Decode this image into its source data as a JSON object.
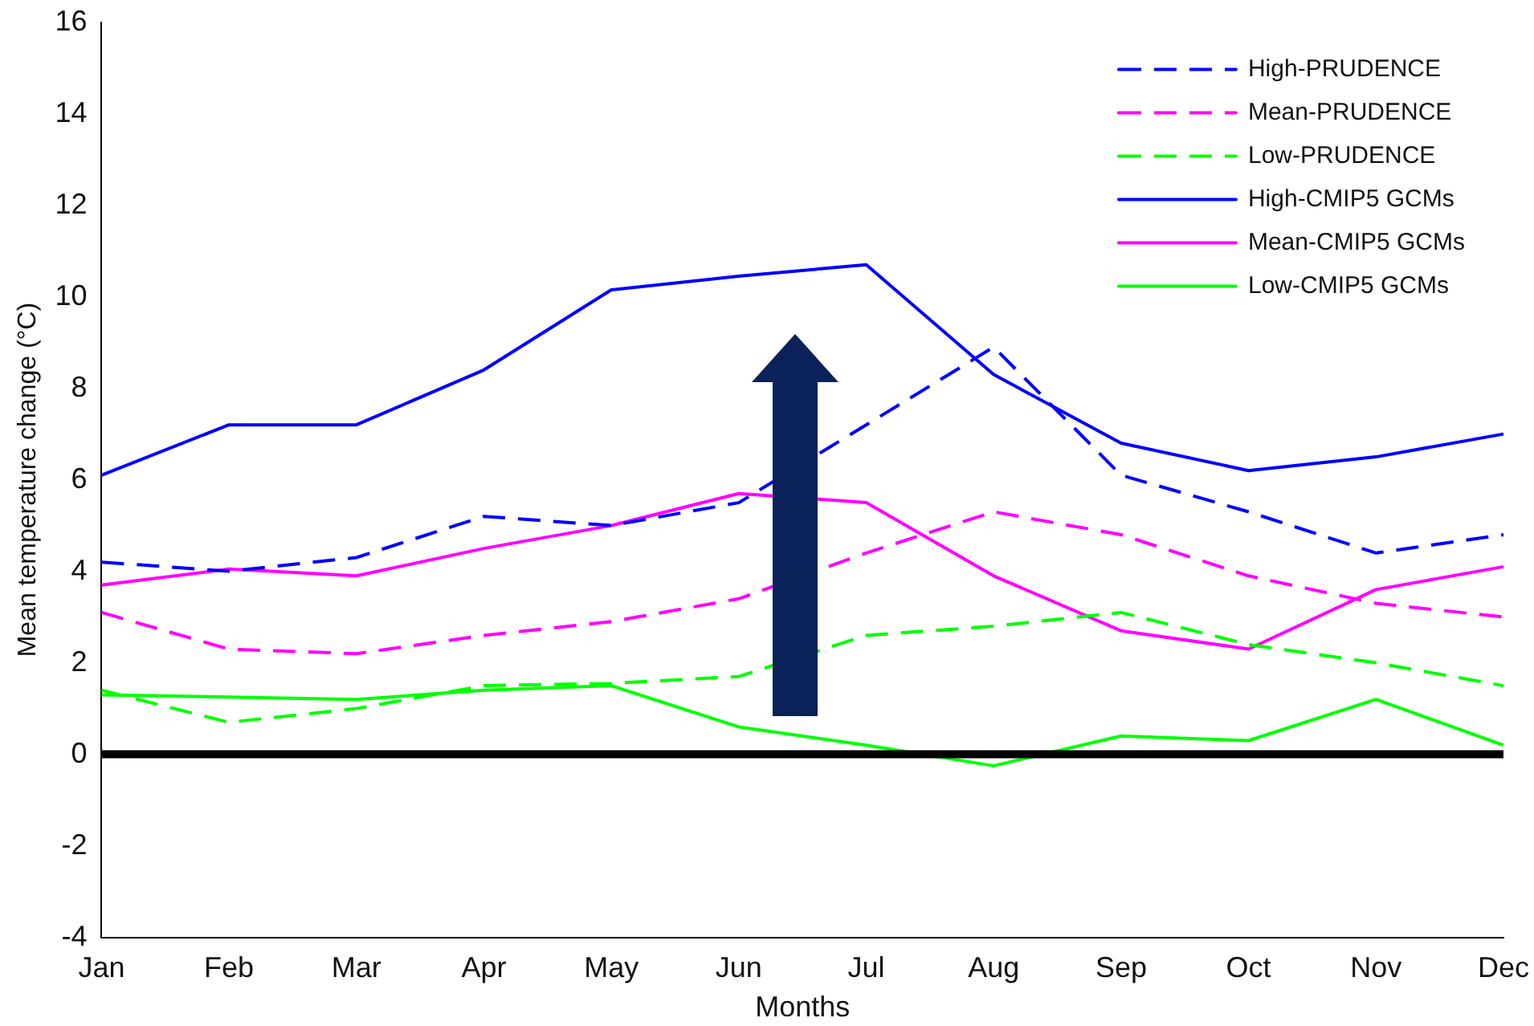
{
  "chart_data": {
    "type": "line",
    "xlabel": "Months",
    "ylabel": "Mean temperature change (°C)",
    "categories": [
      "Jan",
      "Feb",
      "Mar",
      "Apr",
      "May",
      "Jun",
      "Jul",
      "Aug",
      "Sep",
      "Oct",
      "Nov",
      "Dec"
    ],
    "series": [
      {
        "name": "High-PRUDENCE",
        "color": "#0000ff",
        "line_style": "dashed",
        "values": [
          4.2,
          4.0,
          4.3,
          5.2,
          5.0,
          5.5,
          7.2,
          8.9,
          6.1,
          5.3,
          4.4,
          4.8
        ]
      },
      {
        "name": "Mean-PRUDENCE",
        "color": "#ff00ff",
        "line_style": "dashed",
        "values": [
          3.1,
          2.3,
          2.2,
          2.6,
          2.9,
          3.4,
          4.4,
          5.3,
          4.8,
          3.9,
          3.3,
          3.0
        ]
      },
      {
        "name": "Low-PRUDENCE",
        "color": "#00ff00",
        "line_style": "dashed",
        "values": [
          1.4,
          0.7,
          1.0,
          1.5,
          1.55,
          1.7,
          2.6,
          2.8,
          3.1,
          2.4,
          2.0,
          1.5
        ]
      },
      {
        "name": "High-CMIP5 GCMs",
        "color": "#0000ff",
        "line_style": "solid",
        "values": [
          6.1,
          7.2,
          7.2,
          8.4,
          10.15,
          10.45,
          10.7,
          8.3,
          6.8,
          6.2,
          6.5,
          7.0
        ]
      },
      {
        "name": "Mean-CMIP5 GCMs",
        "color": "#ff00ff",
        "line_style": "solid",
        "values": [
          3.7,
          4.05,
          3.9,
          4.5,
          5.0,
          5.7,
          5.5,
          3.9,
          2.7,
          2.3,
          3.6,
          4.1
        ]
      },
      {
        "name": "Low-CMIP5 GCMs",
        "color": "#00ff00",
        "line_style": "solid",
        "values": [
          1.3,
          1.25,
          1.2,
          1.4,
          1.5,
          0.6,
          0.2,
          -0.25,
          0.4,
          0.3,
          1.2,
          0.2
        ]
      }
    ],
    "ylim": [
      -4,
      16
    ],
    "yticks": [
      -4,
      -2,
      0,
      2,
      4,
      6,
      8,
      10,
      12,
      14,
      16
    ],
    "ref_lines": [
      {
        "axis": "y",
        "value": 0,
        "color": "#000000"
      }
    ],
    "grid": false,
    "legend": "top right",
    "marker": "none"
  }
}
